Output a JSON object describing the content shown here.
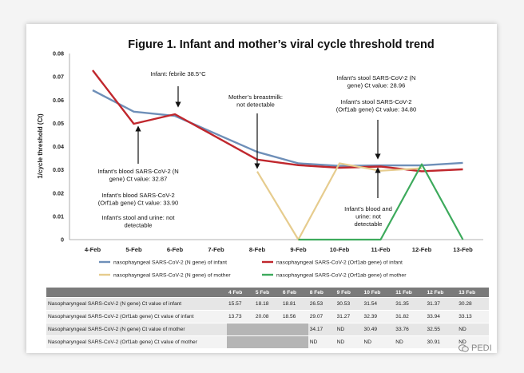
{
  "chart_data": {
    "type": "line",
    "title": "Figure 1. Infant and mother’s viral cycle threshold trend",
    "ylabel": "1/cycle threshold (Ct)",
    "xlabel": "",
    "ylim": [
      0,
      0.08
    ],
    "yticks": [
      "0",
      "0.01",
      "0.02",
      "0.03",
      "0.04",
      "0.05",
      "0.06",
      "0.07",
      "0.08"
    ],
    "categories": [
      "4-Feb",
      "5-Feb",
      "6-Feb",
      "7-Feb",
      "8-Feb",
      "9-Feb",
      "10-Feb",
      "11-Feb",
      "12-Feb",
      "13-Feb"
    ],
    "series": [
      {
        "name": "nasophayngeal SARS-CoV-2 (N gene) of infant",
        "color": "#6e8fb8",
        "values": [
          0.0642,
          0.055,
          0.0532,
          null,
          0.0377,
          0.0328,
          0.0317,
          0.0319,
          0.0319,
          0.033
        ]
      },
      {
        "name": "nasophayngeal SARS-CoV-2 (Orf1ab gene) of infant",
        "color": "#c0272d",
        "values": [
          0.0728,
          0.0498,
          0.0539,
          null,
          0.0344,
          0.032,
          0.0309,
          0.0314,
          0.0294,
          0.0302
        ]
      },
      {
        "name": "nasophayngeal SARS-CoV-2 (N gene) of mother",
        "color": "#e6cc8e",
        "values": [
          null,
          null,
          null,
          null,
          0.0293,
          0,
          0.0328,
          0.0296,
          0.0307,
          null
        ]
      },
      {
        "name": "nasophayngeal SARS-CoV-2 (Orf1ab gene) of mother",
        "color": "#3daa5c",
        "values": [
          null,
          null,
          null,
          null,
          null,
          0,
          0,
          0,
          0.0324,
          0
        ]
      }
    ],
    "annotations": [
      {
        "id": "febrile",
        "lines": [
          "Infant: febrile 38.5°C"
        ]
      },
      {
        "id": "breastmilk",
        "lines": [
          "Mother’s breastmilk:",
          "not detectable"
        ]
      },
      {
        "id": "stool1",
        "lines": [
          "Infant’s stool SARS-CoV-2 (N",
          "gene) Ct value: 28.96"
        ]
      },
      {
        "id": "stool2",
        "lines": [
          "Infant’s stool SARS-CoV-2",
          "(Orf1ab gene) Ct value: 34.80"
        ]
      },
      {
        "id": "blood1",
        "lines": [
          "Infant’s blood SARS-CoV-2 (N",
          "gene) Ct value: 32.87"
        ]
      },
      {
        "id": "blood2",
        "lines": [
          "Infant’s blood SARS-CoV-2",
          "(Orf1ab gene) Ct value: 33.90"
        ]
      },
      {
        "id": "stoolurine",
        "lines": [
          "Infant’s stool and urine: not",
          "detectable"
        ]
      },
      {
        "id": "bloodurine",
        "lines": [
          "Infant’s blood and",
          "urine: not",
          "detectable"
        ]
      }
    ],
    "grid": false,
    "legend_placement": "bottom"
  },
  "table": {
    "headers": [
      "",
      "4 Feb",
      "5 Feb",
      "6 Feb",
      "8 Feb",
      "9 Feb",
      "10 Feb",
      "11 Feb",
      "12 Feb",
      "13 Feb"
    ],
    "rows": [
      {
        "label": "Nasopharyngeal SARS-CoV-2 (N gene) Ct value of infant",
        "cells": [
          "15.57",
          "18.18",
          "18.81",
          "26.53",
          "30.53",
          "31.54",
          "31.35",
          "31.37",
          "30.28"
        ]
      },
      {
        "label": "Nasopharyngeal SARS-CoV-2 (Orf1ab gene) Ct value of infant",
        "cells": [
          "13.73",
          "20.08",
          "18.56",
          "29.07",
          "31.27",
          "32.39",
          "31.82",
          "33.94",
          "33.13"
        ]
      },
      {
        "label": "Nasopharyngeal SARS-CoV-2 (N gene) Ct value of mother",
        "cells": [
          "",
          "",
          "",
          "34.17",
          "ND",
          "30.49",
          "33.76",
          "32.55",
          "ND"
        ]
      },
      {
        "label": "Nasopharyngeal SARS-CoV-2 (Orf1ab gene) Ct value of mother",
        "cells": [
          "",
          "",
          "",
          "ND",
          "ND",
          "ND",
          "ND",
          "30.91",
          "ND"
        ]
      }
    ]
  },
  "watermark": {
    "text": "PEDI"
  }
}
